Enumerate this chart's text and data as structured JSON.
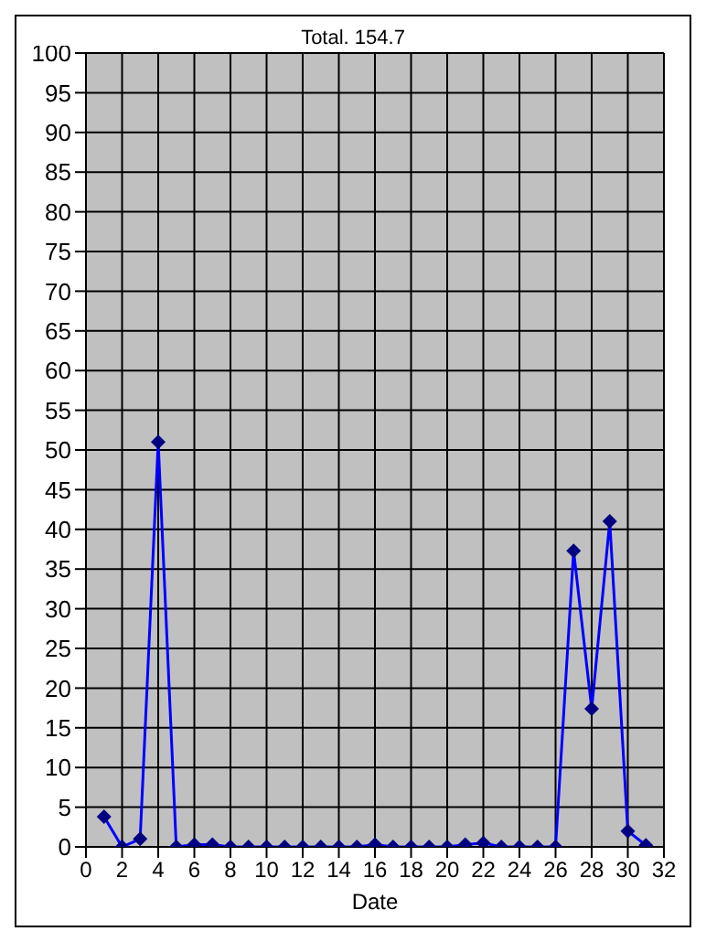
{
  "chart_data": {
    "type": "line",
    "title": "Total. 154.7",
    "xlabel": "Date",
    "x": [
      1,
      2,
      3,
      4,
      5,
      6,
      7,
      8,
      9,
      10,
      11,
      12,
      13,
      14,
      15,
      16,
      17,
      18,
      19,
      20,
      21,
      22,
      23,
      24,
      25,
      26,
      27,
      28,
      29,
      30,
      31
    ],
    "series": [
      {
        "color": "#0000ff",
        "values": [
          3.8,
          0,
          1,
          51,
          0,
          0.3,
          0.3,
          0,
          0,
          0,
          0,
          0,
          0,
          0,
          0,
          0.3,
          0,
          0,
          0,
          0,
          0.3,
          0.5,
          0,
          0,
          0,
          0,
          37.3,
          17.4,
          41,
          2,
          0.2
        ]
      }
    ],
    "xlim": [
      0,
      32
    ],
    "xticks": [
      0,
      2,
      4,
      6,
      8,
      10,
      12,
      14,
      16,
      18,
      20,
      22,
      24,
      26,
      28,
      30,
      32
    ],
    "ylim": [
      0,
      100
    ],
    "yticks": [
      0,
      5,
      10,
      15,
      20,
      25,
      30,
      35,
      40,
      45,
      50,
      55,
      60,
      65,
      70,
      75,
      80,
      85,
      90,
      95,
      100
    ],
    "grid": true,
    "marker": "diamond",
    "legend": false
  }
}
